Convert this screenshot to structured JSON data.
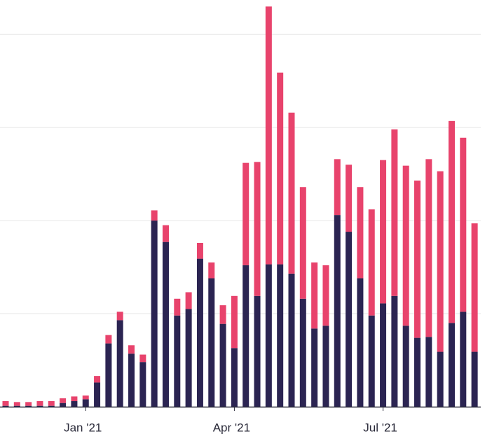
{
  "chart_data": {
    "type": "stacked_bar",
    "categories": [
      null,
      null,
      null,
      null,
      null,
      null,
      null,
      "Jan '21",
      null,
      null,
      null,
      null,
      null,
      null,
      null,
      null,
      null,
      null,
      null,
      null,
      "Apr '21",
      null,
      null,
      null,
      null,
      null,
      null,
      null,
      null,
      null,
      null,
      null,
      null,
      "Jul '21",
      null,
      null,
      null,
      null,
      null,
      null,
      null,
      null
    ],
    "series": [
      {
        "color": "#2b2452",
        "values": [
          1,
          1,
          1,
          1,
          1,
          4,
          6,
          8,
          26,
          68,
          93,
          57,
          48,
          200,
          177,
          98,
          105,
          159,
          138,
          89,
          63,
          152,
          119,
          153,
          153,
          143,
          116,
          84,
          87,
          206,
          188,
          138,
          98,
          111,
          119,
          87,
          74,
          75,
          59,
          90,
          102,
          59
        ]
      },
      {
        "color": "#e8436c",
        "values": [
          5,
          4,
          4,
          5,
          5,
          5,
          5,
          4,
          7,
          9,
          9,
          9,
          8,
          11,
          18,
          18,
          18,
          17,
          17,
          20,
          56,
          110,
          144,
          277,
          206,
          173,
          120,
          71,
          65,
          60,
          72,
          98,
          114,
          154,
          179,
          172,
          169,
          191,
          194,
          217,
          187,
          138
        ]
      }
    ],
    "ylim": [
      0,
      437
    ],
    "yticks": [
      0,
      100,
      200,
      300,
      400
    ],
    "grid": true
  }
}
